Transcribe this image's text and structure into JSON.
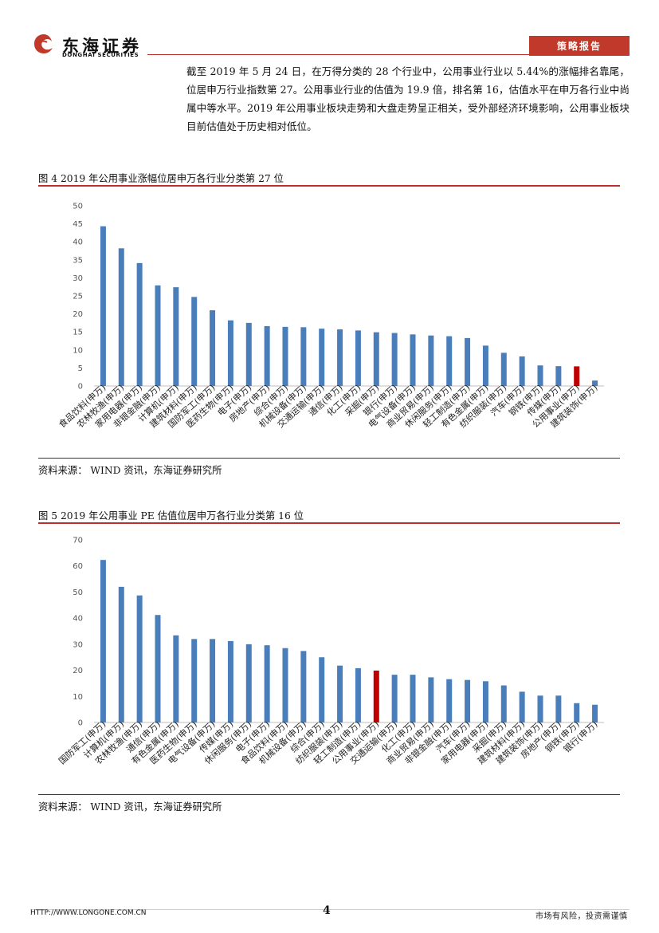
{
  "header": {
    "company_cn": "东海证券",
    "company_en": "DONGHAI SECURITIES",
    "report_type": "策略报告"
  },
  "paragraph": "截至 2019 年 5 月 24 日，在万得分类的 28 个行业中，公用事业行业以 5.44%的涨幅排名靠尾，位居申万行业指数第 27。公用事业行业的估值为 19.9 倍，排名第 16，估值水平在申万各行业中尚属中等水平。2019 年公用事业板块走势和大盘走势呈正相关，受外部经济环境影响，公用事业板块目前估值处于历史相对低位。",
  "figures": [
    {
      "caption": "图 4 2019 年公用事业涨幅位居申万各行业分类第 27 位",
      "source": "资料来源： WIND 资讯，东海证券研究所"
    },
    {
      "caption": "图 5 2019 年公用事业 PE 估值位居申万各行业分类第 16 位",
      "source": "资料来源： WIND 资讯，东海证券研究所"
    }
  ],
  "chart_data": [
    {
      "type": "bar",
      "title": "",
      "categories": [
        "食品饮料(申万)",
        "农林牧渔(申万)",
        "家用电器(申万)",
        "非银金融(申万)",
        "计算机(申万)",
        "建筑材料(申万)",
        "国防军工(申万)",
        "医药生物(申万)",
        "电子(申万)",
        "房地产(申万)",
        "综合(申万)",
        "机械设备(申万)",
        "交通运输(申万)",
        "通信(申万)",
        "化工(申万)",
        "采掘(申万)",
        "银行(申万)",
        "电气设备(申万)",
        "商业贸易(申万)",
        "休闲服务(申万)",
        "轻工制造(申万)",
        "有色金属(申万)",
        "纺织服装(申万)",
        "汽车(申万)",
        "钢铁(申万)",
        "传媒(申万)",
        "公用事业(申万)",
        "建筑装饰(申万)"
      ],
      "values": [
        44.3,
        38.2,
        34.1,
        27.9,
        27.4,
        24.7,
        21.0,
        18.2,
        17.5,
        16.6,
        16.4,
        16.3,
        15.9,
        15.7,
        15.4,
        14.9,
        14.7,
        14.3,
        14.0,
        13.8,
        13.3,
        11.2,
        9.2,
        8.2,
        5.7,
        5.5,
        5.44,
        1.5
      ],
      "highlight_index": 26,
      "ylim": [
        0,
        50
      ],
      "yticks": [
        0,
        5,
        10,
        15,
        20,
        25,
        30,
        35,
        40,
        45,
        50
      ],
      "grid": false,
      "colors": {
        "bar": "#4a7ebb",
        "highlight": "#c00000"
      }
    },
    {
      "type": "bar",
      "title": "",
      "categories": [
        "国防军工(申万)",
        "计算机(申万)",
        "农林牧渔(申万)",
        "通信(申万)",
        "有色金属(申万)",
        "医药生物(申万)",
        "电气设备(申万)",
        "传媒(申万)",
        "休闲服务(申万)",
        "电子(申万)",
        "食品饮料(申万)",
        "机械设备(申万)",
        "综合(申万)",
        "纺织服装(申万)",
        "轻工制造(申万)",
        "公用事业(申万)",
        "交通运输(申万)",
        "化工(申万)",
        "商业贸易(申万)",
        "非银金融(申万)",
        "汽车(申万)",
        "家用电器(申万)",
        "采掘(申万)",
        "建筑材料(申万)",
        "建筑装饰(申万)",
        "房地产(申万)",
        "钢铁(申万)",
        "银行(申万)"
      ],
      "values": [
        62.3,
        52.0,
        48.7,
        41.2,
        33.4,
        32.0,
        32.0,
        31.2,
        30.0,
        29.6,
        28.5,
        27.4,
        25.0,
        21.8,
        20.8,
        19.9,
        18.3,
        18.3,
        17.3,
        16.6,
        16.3,
        15.8,
        14.2,
        11.8,
        10.3,
        10.3,
        7.4,
        6.8
      ],
      "highlight_index": 15,
      "ylim": [
        0,
        70
      ],
      "yticks": [
        0,
        10,
        20,
        30,
        40,
        50,
        60,
        70
      ],
      "grid": false,
      "colors": {
        "bar": "#4a7ebb",
        "highlight": "#c00000"
      }
    }
  ],
  "footer": {
    "url": "HTTP://WWW.LONGONE.COM.CN",
    "page": "4",
    "risk": "市场有风险，投资需谨慎"
  }
}
